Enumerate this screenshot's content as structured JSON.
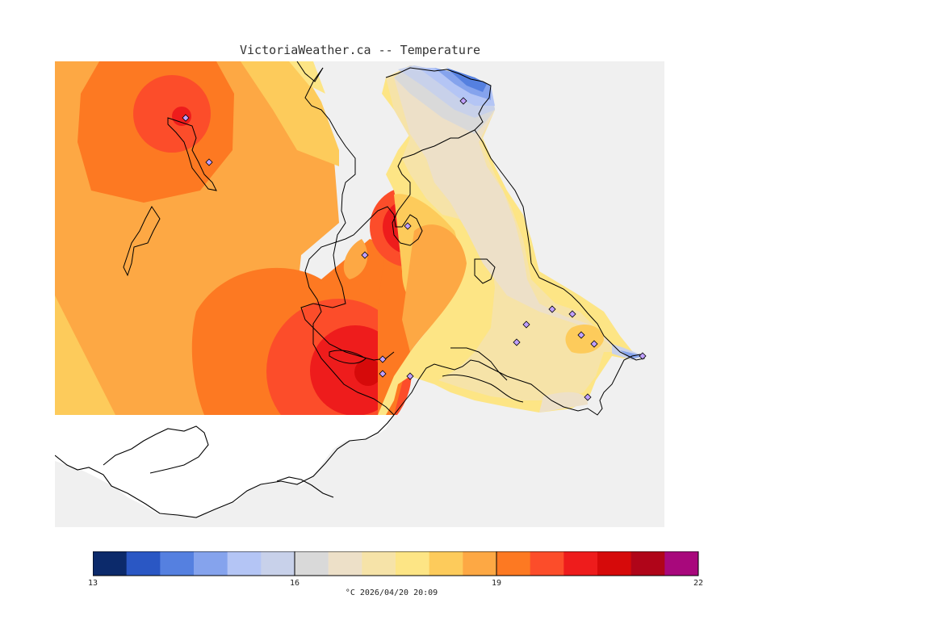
{
  "header": {
    "title": "VictoriaWeather.ca -- Temperature"
  },
  "legend": {
    "units_time": "°C  2026/04/20 20:09",
    "min": 13,
    "max": 22,
    "ticks": [
      "13",
      "16",
      "19",
      "22"
    ],
    "colors": [
      "#0c2a6b",
      "#2a57c4",
      "#5580e0",
      "#85a3ed",
      "#b4c5f5",
      "#c8d1ea",
      "#d9d9d9",
      "#ede0c8",
      "#f6e3a8",
      "#fde585",
      "#fdcb5b",
      "#fda844",
      "#fd7922",
      "#fc4d2a",
      "#ee1c1c",
      "#d60a0a",
      "#b00519",
      "#a8087c"
    ]
  },
  "map": {
    "background_color": "#f0f0f0",
    "land_white_color": "#ffffff",
    "station_marker": "diamond-icon"
  }
}
